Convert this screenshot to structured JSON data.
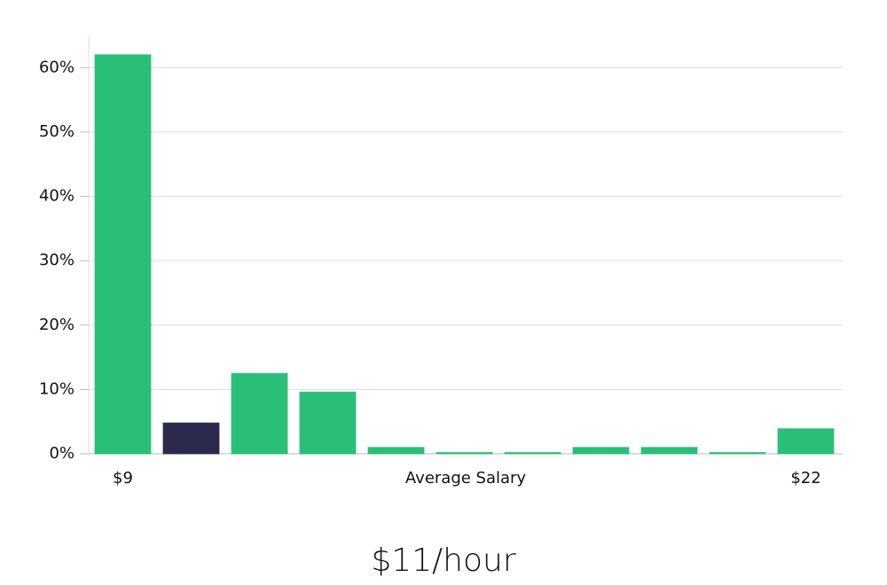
{
  "chart_data": {
    "type": "bar",
    "title": "$11/hour",
    "x_label": "Average Salary",
    "categories": [
      "$9",
      null,
      null,
      null,
      null,
      null,
      null,
      null,
      null,
      null,
      "$22"
    ],
    "values": [
      62,
      4.8,
      12.5,
      9.6,
      1,
      0.2,
      0.2,
      1,
      1,
      0.2,
      3.9
    ],
    "colors": [
      "#2abf78",
      "#2b2a4c",
      "#2abf78",
      "#2abf78",
      "#2abf78",
      "#2abf78",
      "#2abf78",
      "#2abf78",
      "#2abf78",
      "#2abf78",
      "#2abf78"
    ],
    "ylim": [
      0,
      65
    ],
    "yticks": [
      {
        "value": 0,
        "label": "0%"
      },
      {
        "value": 10,
        "label": "10%"
      },
      {
        "value": 20,
        "label": "20%"
      },
      {
        "value": 30,
        "label": "30%"
      },
      {
        "value": 40,
        "label": "40%"
      },
      {
        "value": 50,
        "label": "50%"
      },
      {
        "value": 60,
        "label": "60%"
      }
    ],
    "grid": true
  }
}
